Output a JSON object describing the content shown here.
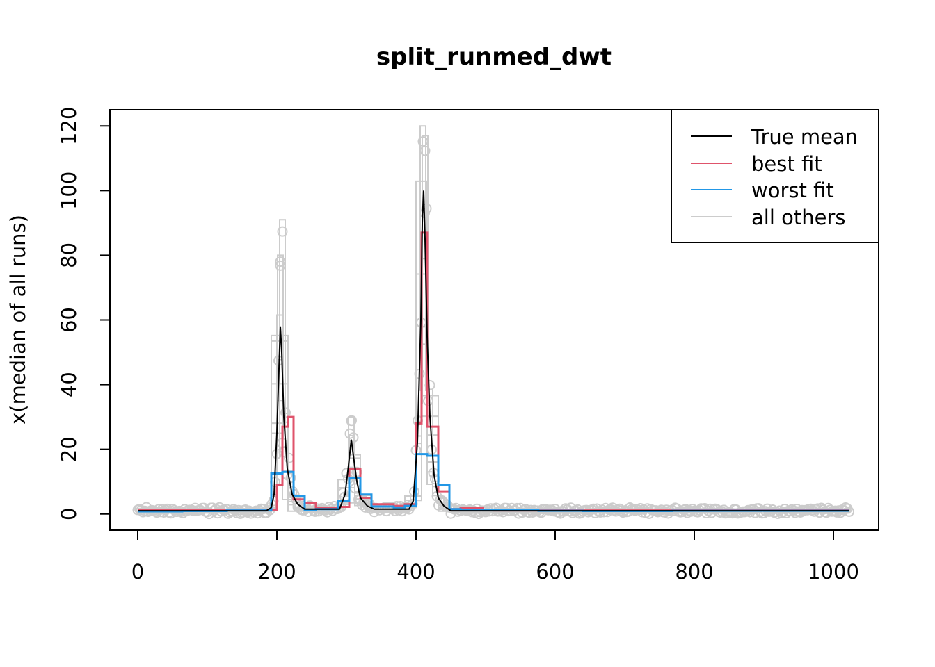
{
  "chart_data": {
    "type": "line",
    "title": "split_runmed_dwt",
    "xlabel": "",
    "ylabel": "x(median of all runs)",
    "xlim": [
      -40,
      1065
    ],
    "ylim": [
      -5,
      125
    ],
    "xticks": [
      0,
      200,
      400,
      600,
      800,
      1000
    ],
    "yticks": [
      0,
      20,
      40,
      60,
      80,
      100,
      120
    ],
    "legend": {
      "position": "top-right",
      "entries": [
        {
          "label": "True mean",
          "color": "#000000"
        },
        {
          "label": "best fit",
          "color": "#DF536B"
        },
        {
          "label": "worst fit",
          "color": "#2297E6"
        },
        {
          "label": "all others",
          "color": "#CCCCCC"
        }
      ]
    },
    "series": [
      {
        "name": "True mean",
        "color": "#000000",
        "style": "line",
        "x": [
          0,
          185,
          192,
          196,
          200,
          203,
          205,
          207,
          210,
          215,
          222,
          230,
          240,
          290,
          298,
          303,
          307,
          310,
          315,
          320,
          330,
          340,
          390,
          396,
          402,
          407,
          409,
          411,
          413,
          416,
          420,
          426,
          432,
          440,
          450,
          1023
        ],
        "y": [
          1,
          1,
          2,
          6,
          25,
          45,
          58,
          50,
          30,
          14,
          6,
          3,
          1.5,
          1.5,
          6,
          15,
          23,
          18,
          10,
          5,
          2.5,
          1.5,
          1.5,
          4,
          22,
          60,
          90,
          100,
          85,
          55,
          30,
          12,
          5,
          2.5,
          1,
          1
        ]
      },
      {
        "name": "best fit",
        "color": "#DF536B",
        "style": "step",
        "x": [
          0,
          192,
          200,
          208,
          216,
          224,
          240,
          256,
          288,
          304,
          320,
          336,
          368,
          384,
          400,
          408,
          416,
          432,
          448,
          464,
          496,
          512,
          1023
        ],
        "y": [
          1.2,
          1.3,
          9,
          27,
          30,
          4.5,
          3.5,
          1.8,
          2.2,
          14,
          5,
          3,
          2.5,
          3,
          28,
          87,
          27,
          7,
          1.5,
          1.8,
          1.3,
          1.1,
          1.1
        ]
      },
      {
        "name": "worst fit",
        "color": "#2297E6",
        "style": "step",
        "x": [
          0,
          64,
          128,
          192,
          208,
          224,
          240,
          256,
          288,
          304,
          320,
          336,
          368,
          384,
          400,
          416,
          432,
          448,
          464,
          512,
          576,
          640,
          768,
          1023
        ],
        "y": [
          0.8,
          0.9,
          1.1,
          12.5,
          13,
          5.5,
          1.3,
          1.5,
          4,
          11,
          6,
          2.3,
          2,
          2.5,
          18.5,
          18,
          9,
          1.5,
          1.3,
          1.2,
          1,
          0.9,
          1,
          1
        ]
      }
    ],
    "others_envelope": {
      "name": "all others",
      "color": "#CCCCCC",
      "peaks": [
        {
          "x": 208,
          "max": 91
        },
        {
          "x": 205,
          "max": 80
        },
        {
          "x": 307,
          "max": 30
        },
        {
          "x": 410,
          "max": 120
        },
        {
          "x": 413,
          "max": 117
        }
      ]
    }
  }
}
